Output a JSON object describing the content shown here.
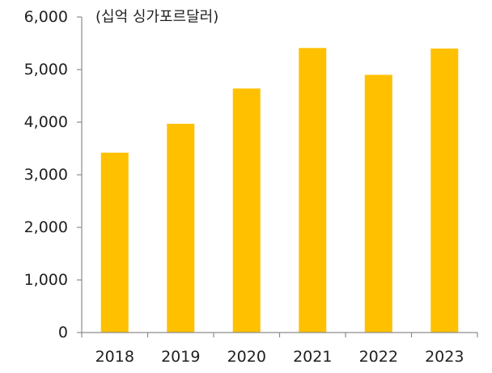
{
  "chart_data": {
    "type": "bar",
    "ylabel": "(십억 싱가포르달러)",
    "categories": [
      "2018",
      "2019",
      "2020",
      "2021",
      "2022",
      "2023"
    ],
    "values": [
      3420,
      3970,
      4640,
      5410,
      4900,
      5400
    ],
    "ylim": [
      0,
      6000
    ],
    "yticks": [
      0,
      1000,
      2000,
      3000,
      4000,
      5000,
      6000
    ],
    "ytick_labels": [
      "0",
      "1,000",
      "2,000",
      "3,000",
      "4,000",
      "5,000",
      "6,000"
    ],
    "bar_color": "#FFC000",
    "grid": false,
    "legend": "none"
  }
}
